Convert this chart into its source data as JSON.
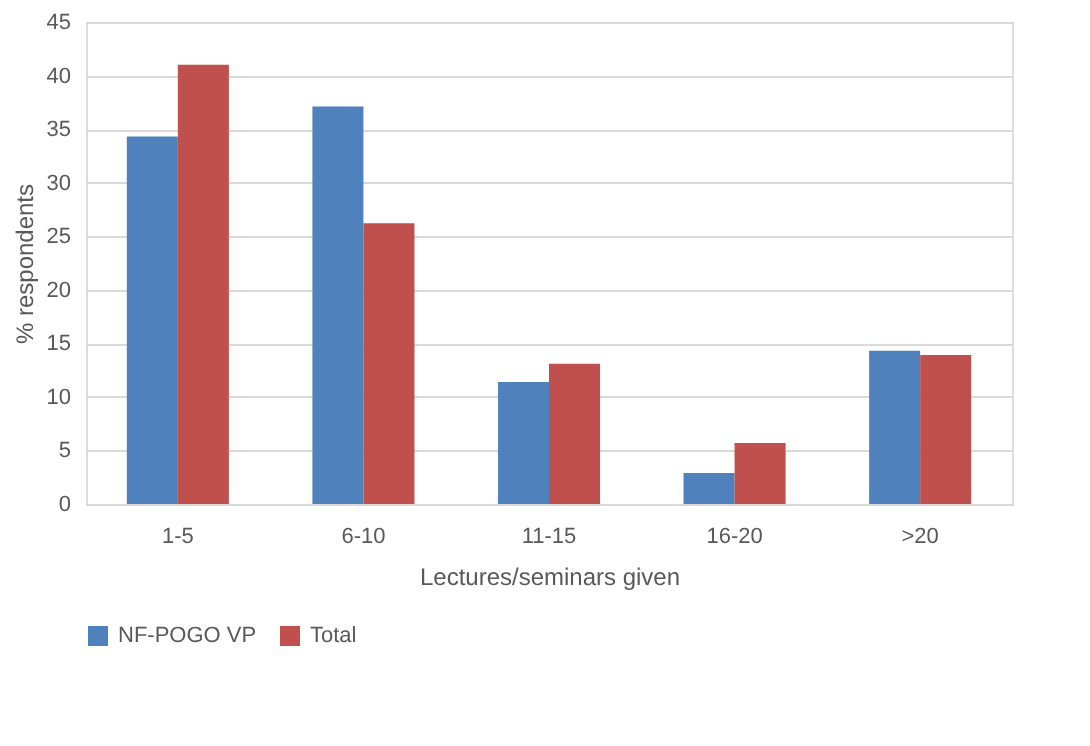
{
  "chart_data": {
    "type": "bar",
    "xlabel": "Lectures/seminars given",
    "ylabel": "% respondents",
    "categories": [
      "1-5",
      "6-10",
      "11-15",
      "16-20",
      ">20"
    ],
    "series": [
      {
        "name": "NF-POGO VP",
        "color": "#4f81bd",
        "values": [
          34.3,
          37.1,
          11.4,
          2.9,
          14.3
        ]
      },
      {
        "name": "Total",
        "color": "#c0504d",
        "values": [
          41.0,
          26.2,
          13.1,
          5.7,
          13.9
        ]
      }
    ],
    "ylim": [
      0,
      45
    ],
    "yticks": [
      0,
      5,
      10,
      15,
      20,
      25,
      30,
      35,
      40,
      45
    ],
    "grid": "y",
    "legend": "bottom"
  }
}
